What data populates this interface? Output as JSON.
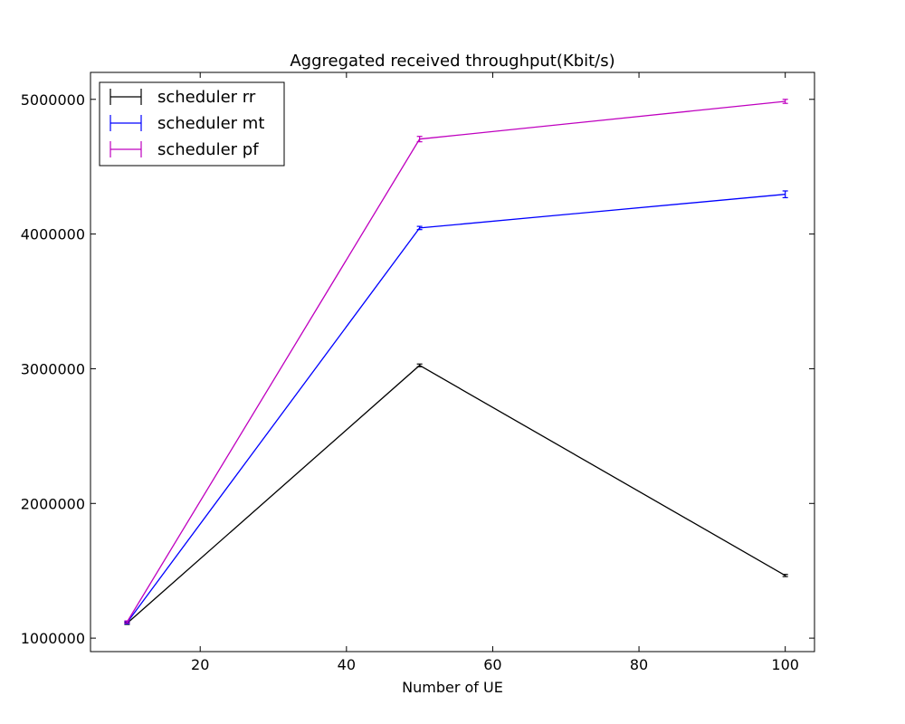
{
  "chart_data": {
    "type": "line",
    "title": "Aggregated received throughput(Kbit/s)",
    "xlabel": "Number of UE",
    "ylabel": "",
    "xlim": [
      5,
      104
    ],
    "ylim": [
      900000,
      5200000
    ],
    "x_ticks": [
      20,
      40,
      60,
      80,
      100
    ],
    "x_tick_labels": [
      "20",
      "40",
      "60",
      "80",
      "100"
    ],
    "y_ticks": [
      1000000,
      2000000,
      3000000,
      4000000,
      5000000
    ],
    "y_tick_labels": [
      "1000000",
      "2000000",
      "3000000",
      "4000000",
      "5000000"
    ],
    "grid": false,
    "legend_position": "top-left",
    "x": [
      10,
      50,
      100
    ],
    "series": [
      {
        "name": "scheduler rr",
        "color": "#000000",
        "values": [
          1110000,
          3025000,
          1465000
        ],
        "errors": [
          8000,
          10000,
          8000
        ]
      },
      {
        "name": "scheduler mt",
        "color": "#0000ff",
        "values": [
          1115000,
          4045000,
          4295000
        ],
        "errors": [
          8000,
          12000,
          25000
        ]
      },
      {
        "name": "scheduler pf",
        "color": "#bf00bf",
        "values": [
          1120000,
          4705000,
          4985000
        ],
        "errors": [
          8000,
          20000,
          15000
        ]
      }
    ]
  }
}
